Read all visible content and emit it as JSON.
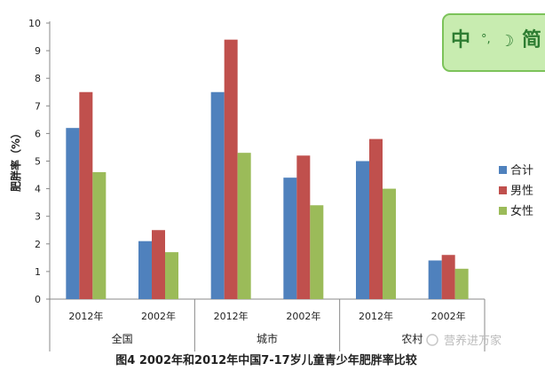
{
  "chart_data": {
    "type": "bar",
    "ylabel": "肥胖率（%）",
    "ylim": [
      0,
      10
    ],
    "yticks": [
      0,
      1,
      2,
      3,
      4,
      5,
      6,
      7,
      8,
      9,
      10
    ],
    "categories": [
      "2012年",
      "2002年",
      "2012年",
      "2002年",
      "2012年",
      "2002年"
    ],
    "groups": [
      "全国",
      "城市",
      "农村"
    ],
    "series": [
      {
        "name": "合计",
        "color": "#4f81bd",
        "values": [
          6.2,
          2.1,
          7.5,
          4.4,
          5.0,
          1.4
        ]
      },
      {
        "name": "男性",
        "color": "#c0504d",
        "values": [
          7.5,
          2.5,
          9.4,
          5.2,
          5.8,
          1.6
        ]
      },
      {
        "name": "女性",
        "color": "#9bbb59",
        "values": [
          4.6,
          1.7,
          5.3,
          3.4,
          4.0,
          1.1
        ]
      }
    ],
    "grid": false,
    "legend_position": "right"
  },
  "caption": "图4  2002年和2012年中国7-17岁儿童青少年肥胖率比较",
  "watermark": "营养进万家",
  "ime_bar": {
    "mode": "中",
    "punct": "°,",
    "moon": "☽",
    "variant": "简"
  }
}
